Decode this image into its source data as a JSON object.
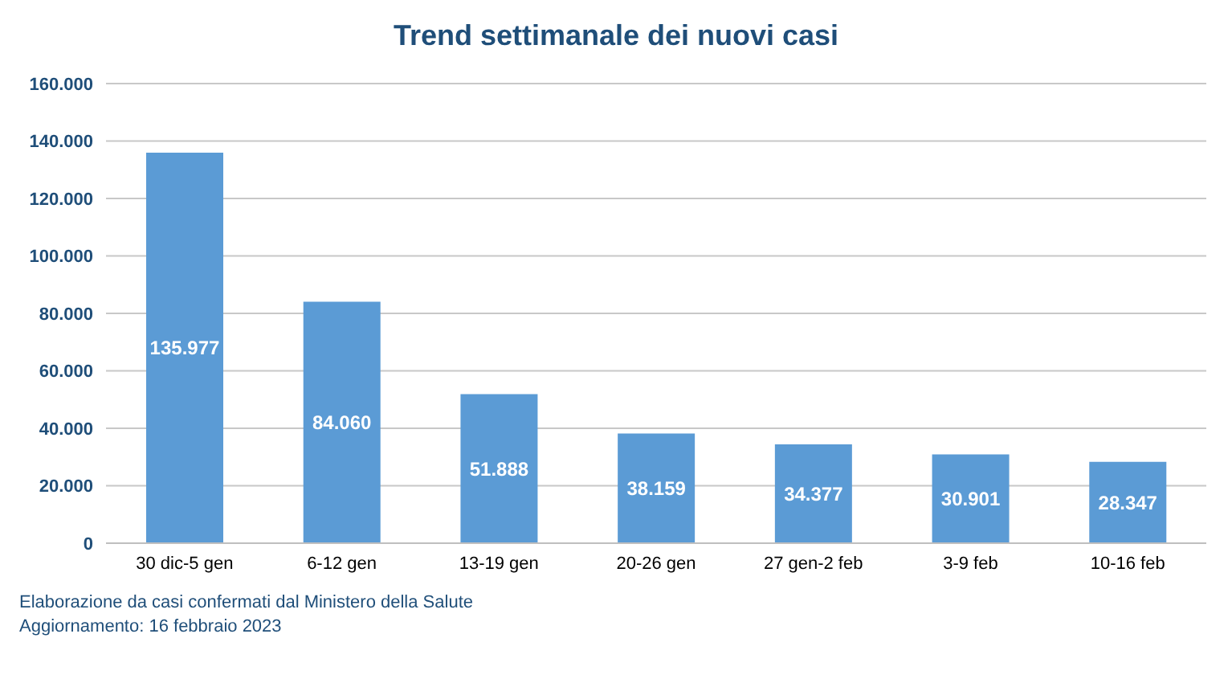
{
  "chart_data": {
    "type": "bar",
    "title": "Trend settimanale dei nuovi casi",
    "categories": [
      "30 dic-5 gen",
      "6-12 gen",
      "13-19 gen",
      "20-26 gen",
      "27 gen-2 feb",
      "3-9 feb",
      "10-16 feb"
    ],
    "values": [
      135977,
      84060,
      51888,
      38159,
      34377,
      30901,
      28347
    ],
    "value_labels": [
      "135.977",
      "84.060",
      "51.888",
      "38.159",
      "34.377",
      "30.901",
      "28.347"
    ],
    "color": "#5b9bd5",
    "ylim": [
      0,
      160000
    ],
    "yticks": [
      {
        "value": 0,
        "label": "0"
      },
      {
        "value": 20000,
        "label": "20.000"
      },
      {
        "value": 40000,
        "label": "40.000"
      },
      {
        "value": 60000,
        "label": "60.000"
      },
      {
        "value": 80000,
        "label": "80.000"
      },
      {
        "value": 100000,
        "label": "100.000"
      },
      {
        "value": 120000,
        "label": "120.000"
      },
      {
        "value": 140000,
        "label": "140.000"
      },
      {
        "value": 160000,
        "label": "160.000"
      }
    ],
    "grid": "y",
    "annotations": [
      "Elaborazione da casi confermati dal Ministero della Salute",
      "Aggiornamento: 16 febbraio 2023"
    ]
  }
}
